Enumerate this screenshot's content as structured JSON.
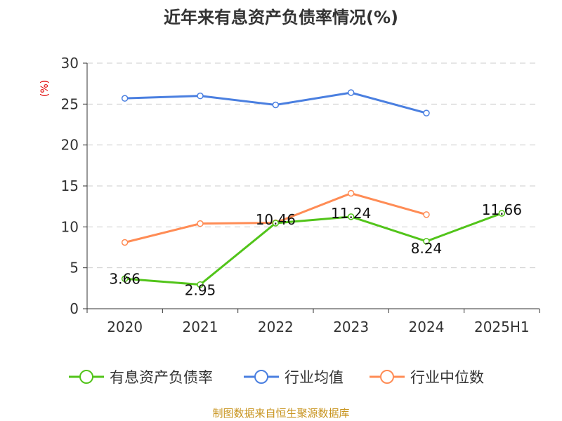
{
  "chart_data": {
    "type": "line",
    "title": "近年来有息资产负债率情况(%)",
    "ylabel": "(%)",
    "categories": [
      "2020",
      "2021",
      "2022",
      "2023",
      "2024",
      "2025H1"
    ],
    "ylim": [
      0,
      30
    ],
    "yticks": [
      0,
      5,
      10,
      15,
      20,
      25,
      30
    ],
    "grid": true,
    "legend_placement": "bottom",
    "series": [
      {
        "name": "有息资产负债率",
        "color": "#52c41a",
        "values": [
          3.66,
          2.95,
          10.46,
          11.24,
          8.24,
          11.66
        ],
        "labels": [
          "3.66",
          "2.95",
          "10.46",
          "11.24",
          "8.24",
          "11.66"
        ]
      },
      {
        "name": "行业均值",
        "color": "#4a7fe0",
        "values": [
          25.7,
          26.0,
          24.9,
          26.4,
          23.9,
          null
        ]
      },
      {
        "name": "行业中位数",
        "color": "#ff8c55",
        "values": [
          8.1,
          10.4,
          10.5,
          14.1,
          11.5,
          null
        ]
      }
    ]
  },
  "source": "制图数据来自恒生聚源数据库",
  "colors": {
    "ylabel": "#e00000",
    "source": "#c8941e"
  }
}
